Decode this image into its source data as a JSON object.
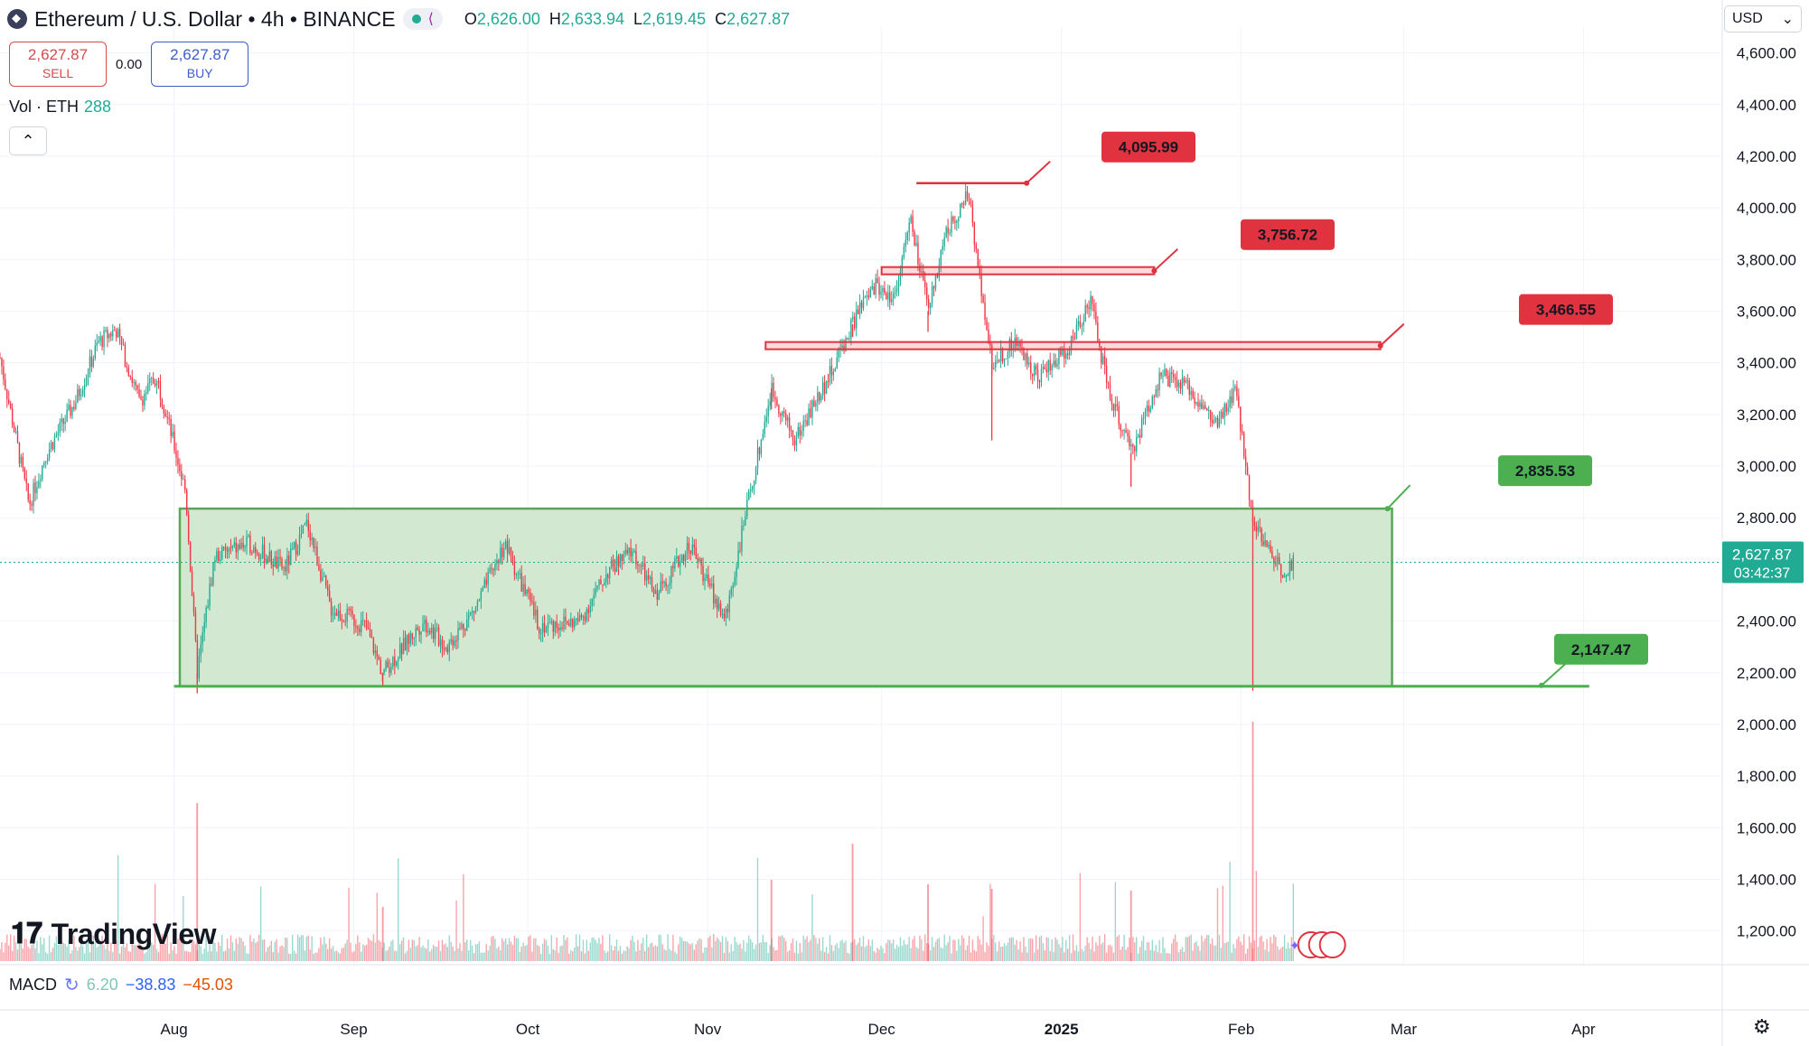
{
  "header": {
    "symbol_title": "Ethereum / U.S. Dollar • 4h • BINANCE",
    "ohlc": [
      {
        "key": "O",
        "value": "2,626.00"
      },
      {
        "key": "H",
        "value": "2,633.94"
      },
      {
        "key": "L",
        "value": "2,619.45"
      },
      {
        "key": "C",
        "value": "2,627.87"
      }
    ]
  },
  "trade": {
    "sell_price": "2,627.87",
    "sell_label": "SELL",
    "spread": "0.00",
    "buy_price": "2,627.87",
    "buy_label": "BUY"
  },
  "volume_indicator": {
    "label": "Vol · ETH",
    "value": "288"
  },
  "macd_indicator": {
    "label": "MACD",
    "v1": "6.20",
    "v2": "−38.83",
    "v3": "−45.03"
  },
  "currency_selector": {
    "value": "USD"
  },
  "branding": {
    "name": "TradingView"
  },
  "icons": [
    "ethereum-coin-icon",
    "share-icon",
    "chevron-up-icon",
    "chevron-down-icon",
    "refresh-icon",
    "settings-gear-icon",
    "flag-icon"
  ],
  "colors": {
    "up": "#22ab94",
    "down": "#f23645",
    "zone_fill": "#d2e8d0",
    "zone_border": "#5aa55a",
    "resistance": "#e0333f",
    "support_label": "#4caf50",
    "price_tag": "#22ab94"
  },
  "chart_data": {
    "type": "candlestick",
    "ylim": [
      1080,
      4700
    ],
    "yaxis_ticks": [
      "4,600.00",
      "4,400.00",
      "4,200.00",
      "4,000.00",
      "3,800.00",
      "3,600.00",
      "3,400.00",
      "3,200.00",
      "3,000.00",
      "2,800.00",
      "2,400.00",
      "2,200.00",
      "2,000.00",
      "1,800.00",
      "1,600.00",
      "1,400.00",
      "1,200.00"
    ],
    "ytick_values": [
      4600,
      4400,
      4200,
      4000,
      3800,
      3600,
      3400,
      3200,
      3000,
      2800,
      2400,
      2200,
      2000,
      1800,
      1600,
      1400,
      1200
    ],
    "xaxis_ticks": [
      "Aug",
      "Sep",
      "Oct",
      "Nov",
      "Dec",
      "2025",
      "Feb",
      "Mar",
      "Apr"
    ],
    "xtick_dates": [
      "2024-08-01",
      "2024-09-01",
      "2024-10-01",
      "2024-11-01",
      "2024-12-01",
      "2025-01-01",
      "2025-02-01",
      "2025-03-01",
      "2025-04-01"
    ],
    "xlim_dates": [
      "2024-07-02",
      "2025-04-24"
    ],
    "path_points": [
      {
        "date": "2024-07-02",
        "price": 3420
      },
      {
        "date": "2024-07-07",
        "price": 2850
      },
      {
        "date": "2024-07-10",
        "price": 3050
      },
      {
        "date": "2024-07-15",
        "price": 3250
      },
      {
        "date": "2024-07-19",
        "price": 3480
      },
      {
        "date": "2024-07-22",
        "price": 3530
      },
      {
        "date": "2024-07-26",
        "price": 3250
      },
      {
        "date": "2024-07-29",
        "price": 3350
      },
      {
        "date": "2024-08-03",
        "price": 2900
      },
      {
        "date": "2024-08-05",
        "price": 2200
      },
      {
        "date": "2024-08-08",
        "price": 2650
      },
      {
        "date": "2024-08-14",
        "price": 2700
      },
      {
        "date": "2024-08-20",
        "price": 2600
      },
      {
        "date": "2024-08-24",
        "price": 2780
      },
      {
        "date": "2024-08-28",
        "price": 2450
      },
      {
        "date": "2024-09-03",
        "price": 2380
      },
      {
        "date": "2024-09-06",
        "price": 2200
      },
      {
        "date": "2024-09-13",
        "price": 2400
      },
      {
        "date": "2024-09-17",
        "price": 2300
      },
      {
        "date": "2024-09-22",
        "price": 2450
      },
      {
        "date": "2024-09-27",
        "price": 2700
      },
      {
        "date": "2024-10-03",
        "price": 2380
      },
      {
        "date": "2024-10-10",
        "price": 2400
      },
      {
        "date": "2024-10-15",
        "price": 2600
      },
      {
        "date": "2024-10-19",
        "price": 2670
      },
      {
        "date": "2024-10-23",
        "price": 2500
      },
      {
        "date": "2024-10-29",
        "price": 2700
      },
      {
        "date": "2024-11-04",
        "price": 2400
      },
      {
        "date": "2024-11-07",
        "price": 2750
      },
      {
        "date": "2024-11-12",
        "price": 3300
      },
      {
        "date": "2024-11-16",
        "price": 3100
      },
      {
        "date": "2024-11-22",
        "price": 3350
      },
      {
        "date": "2024-11-27",
        "price": 3600
      },
      {
        "date": "2024-11-30",
        "price": 3700
      },
      {
        "date": "2024-12-03",
        "price": 3650
      },
      {
        "date": "2024-12-06",
        "price": 3950
      },
      {
        "date": "2024-12-09",
        "price": 3600
      },
      {
        "date": "2024-12-12",
        "price": 3900
      },
      {
        "date": "2024-12-16",
        "price": 4050
      },
      {
        "date": "2024-12-20",
        "price": 3400
      },
      {
        "date": "2024-12-24",
        "price": 3480
      },
      {
        "date": "2024-12-28",
        "price": 3350
      },
      {
        "date": "2025-01-02",
        "price": 3450
      },
      {
        "date": "2025-01-06",
        "price": 3650
      },
      {
        "date": "2025-01-09",
        "price": 3300
      },
      {
        "date": "2025-01-13",
        "price": 3050
      },
      {
        "date": "2025-01-18",
        "price": 3350
      },
      {
        "date": "2025-01-23",
        "price": 3300
      },
      {
        "date": "2025-01-28",
        "price": 3150
      },
      {
        "date": "2025-01-31",
        "price": 3300
      },
      {
        "date": "2025-02-03",
        "price": 2800
      },
      {
        "date": "2025-02-05",
        "price": 2700
      },
      {
        "date": "2025-02-08",
        "price": 2600
      },
      {
        "date": "2025-02-10",
        "price": 2627.87
      }
    ],
    "rectangle_zone": {
      "top": 2835.53,
      "bottom": 2147.47,
      "start_date": "2024-08-02",
      "end_date": "2025-02-27"
    },
    "levels": [
      {
        "value": 4095.99,
        "label": "4,095.99",
        "start_date": "2024-12-07",
        "end_date": "2024-12-26",
        "style": "line"
      },
      {
        "value": 3756.72,
        "label": "3,756.72",
        "start_date": "2024-12-01",
        "end_date": "2025-01-17",
        "style": "band"
      },
      {
        "value": 3466.55,
        "label": "3,466.55",
        "start_date": "2024-11-11",
        "end_date": "2025-02-25",
        "style": "band"
      },
      {
        "value": 2835.53,
        "label": "2,835.53",
        "start_date": "2024-08-02",
        "end_date": "2025-02-27",
        "style": "zone-top"
      },
      {
        "value": 2147.47,
        "label": "2,147.47",
        "start_date": "2024-08-01",
        "end_date": "2025-04-02",
        "style": "line"
      }
    ],
    "last_price": {
      "value": 2627.87,
      "label": "2,627.87",
      "countdown": "03:42:37"
    }
  }
}
